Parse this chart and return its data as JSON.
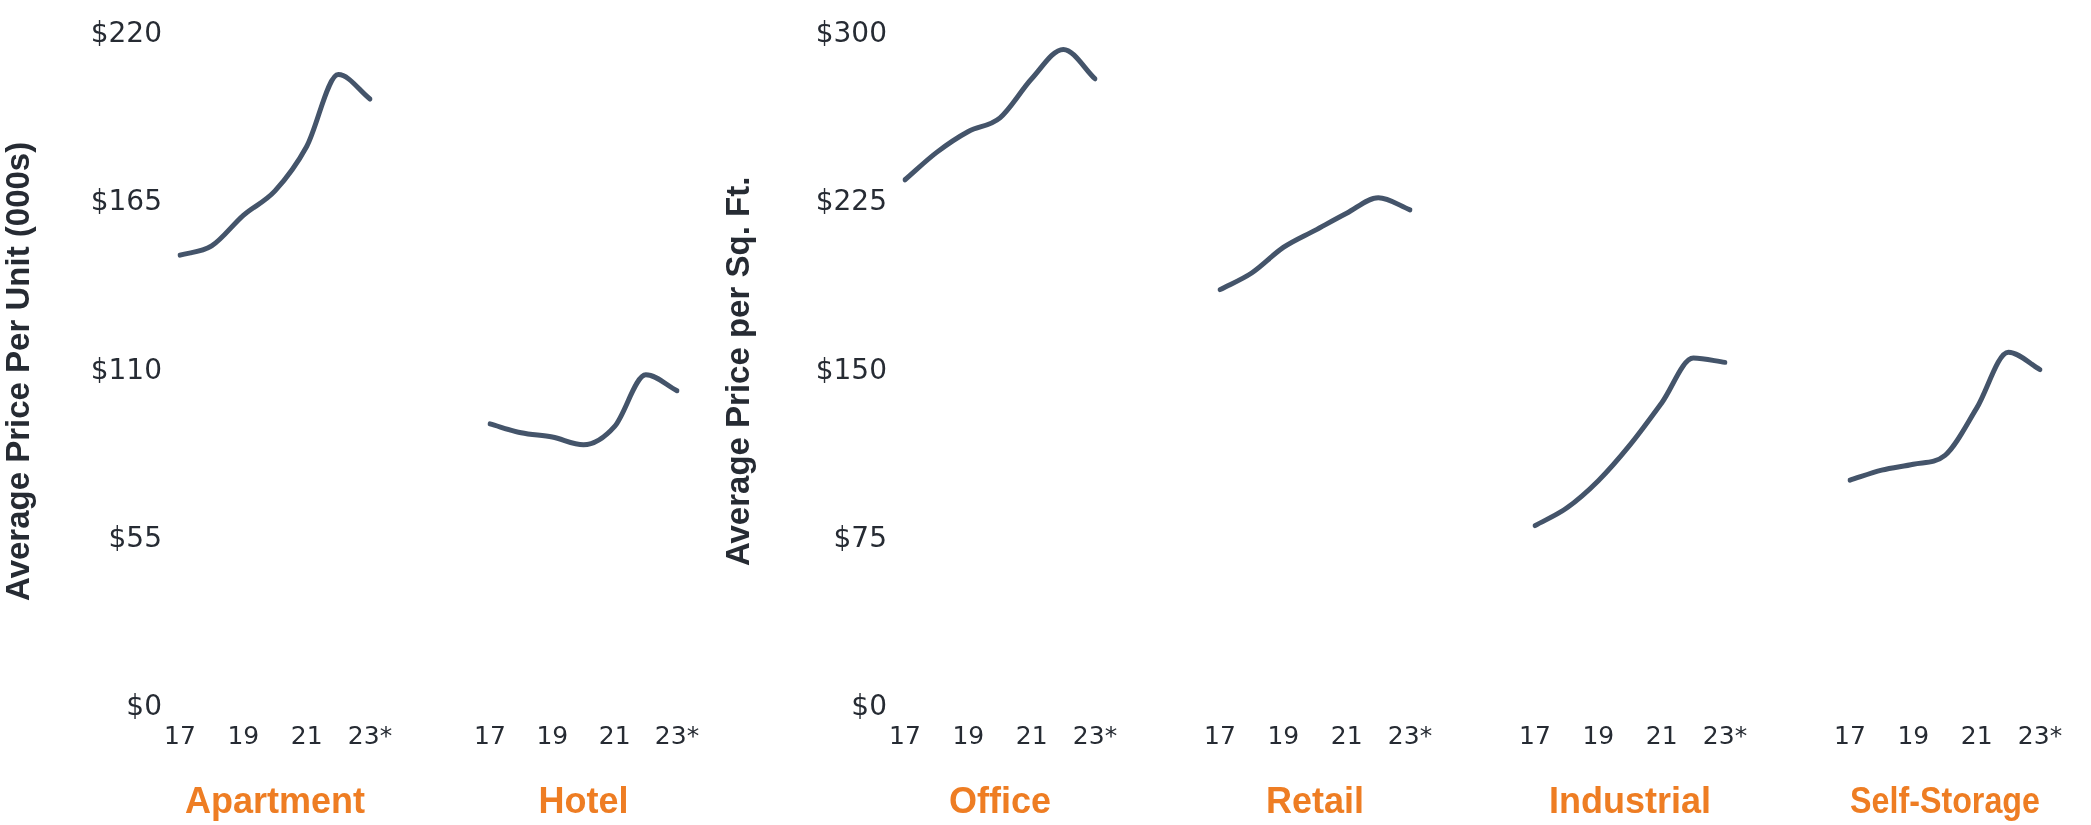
{
  "chart_data": [
    {
      "type": "line",
      "xlabel": "Apartment",
      "ylabel": "Average Price Per Unit (000s)",
      "categories": [
        "17",
        null,
        "19",
        null,
        "21",
        null,
        "23*"
      ],
      "series": [
        {
          "color": "#44546a",
          "values": [
            148,
            151,
            161,
            169,
            183.5,
            207,
            199
          ]
        }
      ],
      "ylim": [
        0,
        220
      ],
      "yticks": [
        {
          "value": 0,
          "label": "$0"
        },
        {
          "value": 55,
          "label": "$55"
        },
        {
          "value": 110,
          "label": "$110"
        },
        {
          "value": 165,
          "label": "$165"
        },
        {
          "value": 220,
          "label": "$220"
        }
      ],
      "marker": "none"
    },
    {
      "type": "line",
      "xlabel": "Hotel",
      "categories": [
        "17",
        null,
        "19",
        null,
        "21",
        null,
        "23*"
      ],
      "series": [
        {
          "color": "#44546a",
          "values": [
            92.6,
            89.7,
            88.3,
            85.8,
            91.8,
            108.6,
            103.4
          ]
        }
      ],
      "ylim": [
        0,
        220
      ],
      "tick_labels": "x",
      "marker": "none"
    },
    {
      "type": "line",
      "xlabel": "Office",
      "ylabel": "Average Price per Sq. Ft.",
      "categories": [
        "17",
        null,
        "19",
        null,
        "21",
        null,
        "23*"
      ],
      "series": [
        {
          "color": "#44546a",
          "values": [
            235.4,
            247.6,
            256.9,
            263,
            280.4,
            293.5,
            280.4
          ]
        }
      ],
      "ylim": [
        0,
        300
      ],
      "yticks": [
        {
          "value": 0,
          "label": "$0"
        },
        {
          "value": 75,
          "label": "$75"
        },
        {
          "value": 150,
          "label": "$150"
        },
        {
          "value": 225,
          "label": "$225"
        },
        {
          "value": 300,
          "label": "$300"
        }
      ],
      "marker": "none"
    },
    {
      "type": "line",
      "xlabel": "Retail",
      "categories": [
        "17",
        null,
        "19",
        null,
        "21",
        null,
        "23*"
      ],
      "series": [
        {
          "color": "#44546a",
          "values": [
            183.5,
            190.8,
            202,
            209.5,
            217,
            223.8,
            218.5
          ]
        }
      ],
      "ylim": [
        0,
        300
      ],
      "tick_labels": "x",
      "marker": "none"
    },
    {
      "type": "line",
      "xlabel": "Industrial",
      "categories": [
        "17",
        null,
        "19",
        null,
        "21",
        null,
        "23*"
      ],
      "series": [
        {
          "color": "#44546a",
          "values": [
            80,
            87.7,
            99.7,
            115.4,
            133.8,
            153.5,
            151.6
          ]
        }
      ],
      "ylim": [
        0,
        300
      ],
      "tick_labels": "x",
      "marker": "none"
    },
    {
      "type": "line",
      "xlabel": "Self-Storage",
      "categories": [
        "17",
        null,
        "19",
        null,
        "21",
        null,
        "23*"
      ],
      "series": [
        {
          "color": "#44546a",
          "values": [
            99.9,
            104.3,
            106.9,
            110.8,
            131.5,
            156,
            148.4
          ]
        }
      ],
      "ylim": [
        0,
        300
      ],
      "tick_labels": "x",
      "marker": "none"
    }
  ]
}
